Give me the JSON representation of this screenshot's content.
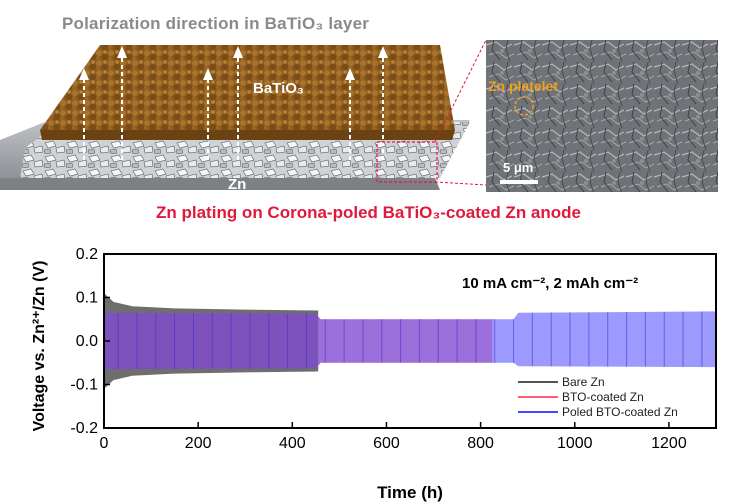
{
  "schematic": {
    "polarization_title": "Polarization direction in BaTiO₃  layer",
    "batio3_label": "BaTiO₃",
    "zn_label": "Zn",
    "caption": "Zn plating on Corona-poled BaTiO₃-coated Zn anode"
  },
  "sem": {
    "platelet_label": "Zn platelet",
    "scale_bar_label": "5 μm"
  },
  "chart_data": {
    "type": "area",
    "title": "",
    "annotation": "10 mA cm⁻², 2 mAh cm⁻²",
    "xlabel": "Time (h)",
    "ylabel": "Voltage vs. Zn²⁺/Zn (V)",
    "xlim": [
      0,
      1300
    ],
    "ylim": [
      -0.2,
      0.2
    ],
    "xticks": [
      "0",
      "200",
      "400",
      "600",
      "800",
      "1000",
      "1200"
    ],
    "yticks": [
      "0.2",
      "0.1",
      "0.0",
      "-0.1",
      "-0.2"
    ],
    "legend_position": "bottom-right",
    "series": [
      {
        "name": "Bare Zn",
        "color": "#555555",
        "x": [
          0,
          20,
          60,
          150,
          300,
          455
        ],
        "upper": [
          0.11,
          0.09,
          0.08,
          0.075,
          0.072,
          0.07
        ],
        "lower": [
          -0.11,
          -0.09,
          -0.08,
          -0.075,
          -0.072,
          -0.07
        ]
      },
      {
        "name": "BTO-coated Zn",
        "color": "#ff5a6e",
        "x": [
          0,
          450,
          460,
          825
        ],
        "upper": [
          0.065,
          0.063,
          0.05,
          0.05
        ],
        "lower": [
          -0.065,
          -0.063,
          -0.05,
          -0.05
        ]
      },
      {
        "name": "Poled BTO-coated Zn",
        "color": "#4a46ff",
        "x": [
          0,
          450,
          460,
          870,
          880,
          1300
        ],
        "upper": [
          0.065,
          0.063,
          0.05,
          0.05,
          0.065,
          0.068
        ],
        "lower": [
          -0.065,
          -0.063,
          -0.05,
          -0.05,
          -0.058,
          -0.06
        ]
      }
    ]
  }
}
